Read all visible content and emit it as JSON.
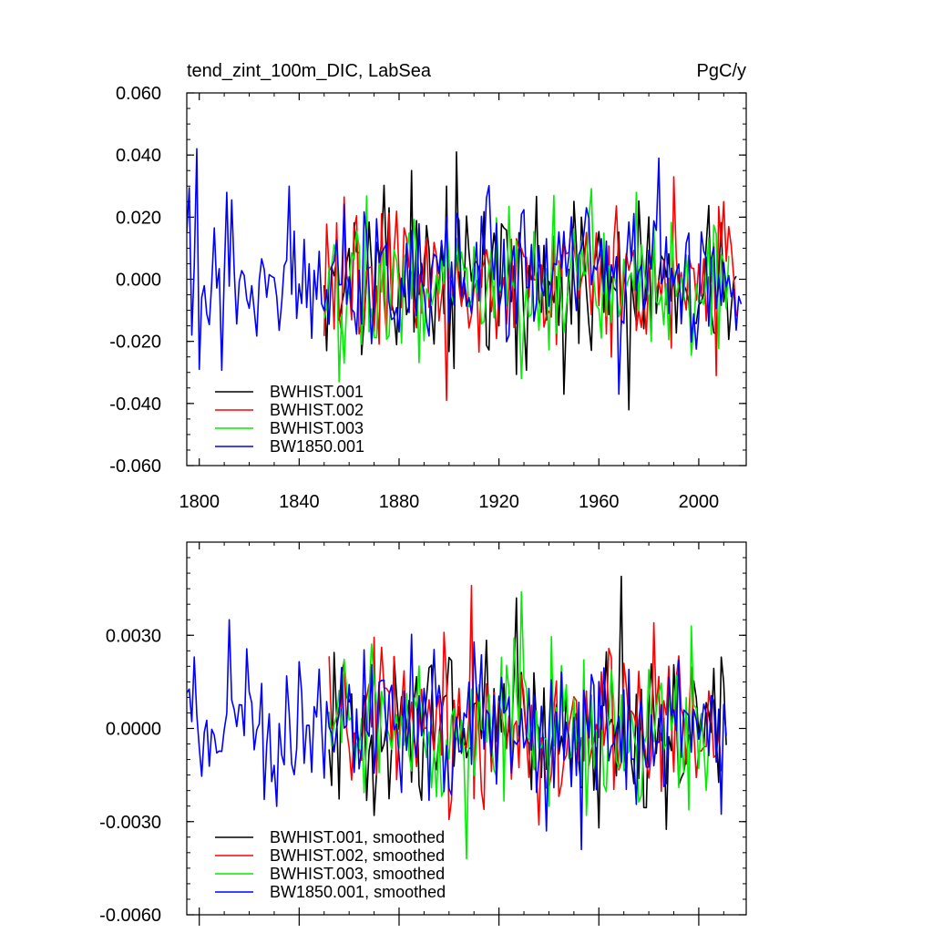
{
  "chart_data": [
    {
      "type": "line",
      "title": "tend_zint_100m_DIC, LabSea",
      "units": "PgC/y",
      "xlabel": "",
      "ylabel": "",
      "xlim": [
        1795,
        2019
      ],
      "ylim": [
        -0.06,
        0.06
      ],
      "x_ticks": [
        "1800",
        "1840",
        "1880",
        "1920",
        "1960",
        "2000"
      ],
      "y_ticks": [
        "0.060",
        "0.040",
        "0.020",
        "0.000",
        "-0.020",
        "-0.040",
        "-0.060"
      ],
      "legend": [
        "BWHIST.001",
        "BWHIST.002",
        "BWHIST.003",
        "BW1850.001"
      ],
      "legend_location": "lower-left",
      "series": [
        {
          "name": "BWHIST.001",
          "color": "#000000",
          "x_start": 1850,
          "x_end": 2015,
          "amplitude": 0.013,
          "peaks": [
            [
              1903,
              0.041
            ],
            [
              1972,
              -0.042
            ],
            [
              1885,
              0.035
            ],
            [
              1946,
              -0.037
            ]
          ]
        },
        {
          "name": "BWHIST.002",
          "color": "#ff0000",
          "x_start": 1850,
          "x_end": 2015,
          "amplitude": 0.012,
          "peaks": [
            [
              1899,
              -0.039
            ],
            [
              1990,
              0.033
            ],
            [
              2007,
              -0.031
            ],
            [
              2010,
              0.025
            ]
          ]
        },
        {
          "name": "BWHIST.003",
          "color": "#00ee00",
          "x_start": 1850,
          "x_end": 2012,
          "amplitude": 0.012,
          "peaks": [
            [
              1856,
              -0.033
            ],
            [
              1929,
              -0.032
            ],
            [
              1942,
              0.027
            ],
            [
              1975,
              0.028
            ]
          ]
        },
        {
          "name": "BW1850.001",
          "color": "#0000ff",
          "x_start": 1795,
          "x_end": 2017,
          "amplitude": 0.012,
          "peaks": [
            [
              1799,
              0.042
            ],
            [
              1800,
              -0.029
            ],
            [
              1811,
              0.028
            ],
            [
              1836,
              0.03
            ],
            [
              1968,
              -0.037
            ],
            [
              1984,
              0.039
            ]
          ]
        }
      ]
    },
    {
      "type": "line",
      "title": "",
      "xlabel": "",
      "ylabel": "",
      "xlim": [
        1795,
        2019
      ],
      "ylim": [
        -0.006,
        0.006
      ],
      "y_ticks": [
        "0.0030",
        "0.0000",
        "-0.0030",
        "-0.0060"
      ],
      "legend": [
        "BWHIST.001, smoothed",
        "BWHIST.002, smoothed",
        "BWHIST.003, smoothed",
        "BW1850.001, smoothed"
      ],
      "legend_location": "lower-left",
      "series": [
        {
          "name": "BWHIST.001, smoothed",
          "color": "#000000",
          "x_start": 1852,
          "x_end": 2011,
          "amplitude": 0.0013,
          "peaks": [
            [
              1927,
              0.0042
            ],
            [
              1969,
              0.0049
            ],
            [
              1960,
              -0.0032
            ]
          ]
        },
        {
          "name": "BWHIST.002, smoothed",
          "color": "#ff0000",
          "x_start": 1852,
          "x_end": 2009,
          "amplitude": 0.0013,
          "peaks": [
            [
              1909,
              0.0046
            ],
            [
              1936,
              -0.0031
            ],
            [
              1982,
              0.0034
            ]
          ]
        },
        {
          "name": "BWHIST.003, smoothed",
          "color": "#00ee00",
          "x_start": 1852,
          "x_end": 2004,
          "amplitude": 0.0013,
          "peaks": [
            [
              1907,
              -0.0042
            ],
            [
              1929,
              0.0044
            ],
            [
              1997,
              0.0033
            ]
          ]
        },
        {
          "name": "BW1850.001, smoothed",
          "color": "#0000ff",
          "x_start": 1795,
          "x_end": 2011,
          "amplitude": 0.0013,
          "peaks": [
            [
              1798,
              0.0023
            ],
            [
              1812,
              0.0035
            ],
            [
              1953,
              -0.0039
            ],
            [
              1939,
              -0.0033
            ]
          ]
        }
      ]
    }
  ]
}
